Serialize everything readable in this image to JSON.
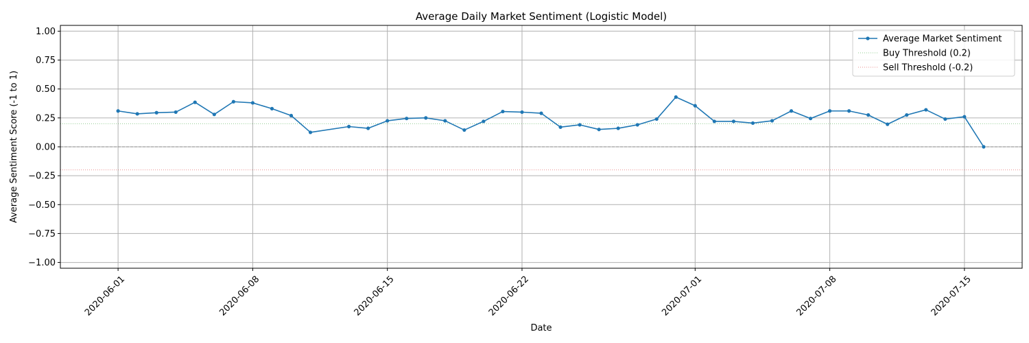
{
  "chart_data": {
    "type": "line",
    "title": "Average Daily Market Sentiment (Logistic Model)",
    "xlabel": "Date",
    "ylabel": "Average Sentiment Score (-1 to 1)",
    "ylim": [
      -1.05,
      1.05
    ],
    "xlim": [
      "2020-05-29",
      "2020-07-18"
    ],
    "grid": true,
    "legend_position": "top-right",
    "x_ticks": [
      "2020-06-01",
      "2020-06-08",
      "2020-06-15",
      "2020-06-22",
      "2020-07-01",
      "2020-07-08",
      "2020-07-15"
    ],
    "y_ticks": [
      "−1.00",
      "−0.75",
      "−0.50",
      "−0.25",
      "0.00",
      "0.25",
      "0.50",
      "0.75",
      "1.00"
    ],
    "y_tick_values": [
      -1.0,
      -0.75,
      -0.5,
      -0.25,
      0.0,
      0.25,
      0.5,
      0.75,
      1.0
    ],
    "series": [
      {
        "name": "Average Market Sentiment",
        "color": "#1f77b4",
        "x": [
          "2020-06-01",
          "2020-06-02",
          "2020-06-03",
          "2020-06-04",
          "2020-06-05",
          "2020-06-06",
          "2020-06-07",
          "2020-06-08",
          "2020-06-09",
          "2020-06-10",
          "2020-06-11",
          "2020-06-13",
          "2020-06-14",
          "2020-06-15",
          "2020-06-16",
          "2020-06-17",
          "2020-06-18",
          "2020-06-19",
          "2020-06-20",
          "2020-06-21",
          "2020-06-22",
          "2020-06-23",
          "2020-06-24",
          "2020-06-25",
          "2020-06-26",
          "2020-06-27",
          "2020-06-28",
          "2020-06-29",
          "2020-06-30",
          "2020-07-01",
          "2020-07-02",
          "2020-07-03",
          "2020-07-04",
          "2020-07-05",
          "2020-07-06",
          "2020-07-07",
          "2020-07-08",
          "2020-07-09",
          "2020-07-10",
          "2020-07-11",
          "2020-07-12",
          "2020-07-13",
          "2020-07-14",
          "2020-07-15",
          "2020-07-16"
        ],
        "y": [
          0.31,
          0.285,
          0.295,
          0.3,
          0.385,
          0.28,
          0.39,
          0.38,
          0.33,
          0.27,
          0.125,
          0.175,
          0.16,
          0.225,
          0.245,
          0.25,
          0.225,
          0.145,
          0.22,
          0.305,
          0.3,
          0.29,
          0.17,
          0.19,
          0.15,
          0.16,
          0.19,
          0.24,
          0.43,
          0.355,
          0.22,
          0.22,
          0.205,
          0.225,
          0.31,
          0.245,
          0.31,
          0.31,
          0.275,
          0.195,
          0.275,
          0.32,
          0.24,
          0.26,
          0.0
        ]
      }
    ],
    "reference_lines": [
      {
        "name": "Buy Threshold (0.2)",
        "y": 0.2,
        "color": "#2ca02c",
        "style": "dotted"
      },
      {
        "name": "Sell Threshold (-0.2)",
        "y": -0.2,
        "color": "#d62728",
        "style": "dotted"
      },
      {
        "name": "",
        "y": 0.0,
        "color": "#808080",
        "style": "dashed"
      }
    ]
  }
}
